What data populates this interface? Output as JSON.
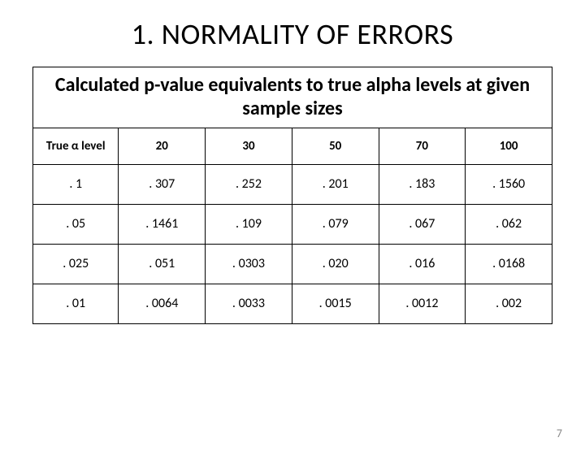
{
  "title": "1. NORMALITY OF ERRORS",
  "caption": "Calculated p-value equivalents to true alpha levels at given sample sizes",
  "header": [
    "True α level",
    "20",
    "30",
    "50",
    "70",
    "100"
  ],
  "rows": [
    [
      ". 1",
      ". 307",
      ". 252",
      ". 201",
      ". 183",
      ". 1560"
    ],
    [
      ". 05",
      ". 1461",
      ". 109",
      ". 079",
      ". 067",
      ". 062"
    ],
    [
      ". 025",
      ". 051",
      ". 0303",
      ". 020",
      ". 016",
      ". 0168"
    ],
    [
      ". 01",
      ". 0064",
      ". 0033",
      ". 0015",
      ". 0012",
      ". 002"
    ]
  ],
  "page_number": "7",
  "style": {
    "type": "table",
    "background_color": "#ffffff",
    "border_color": "#000000",
    "text_color": "#000000",
    "page_num_color": "#8b8b8b",
    "title_fontsize": 36,
    "caption_fontsize": 24,
    "header_fontsize": 15,
    "cell_fontsize": 16,
    "font_family": "Calibri, Arial, sans-serif",
    "columns": 6,
    "data_rows": 4,
    "slide_width": 720,
    "slide_height": 540
  }
}
